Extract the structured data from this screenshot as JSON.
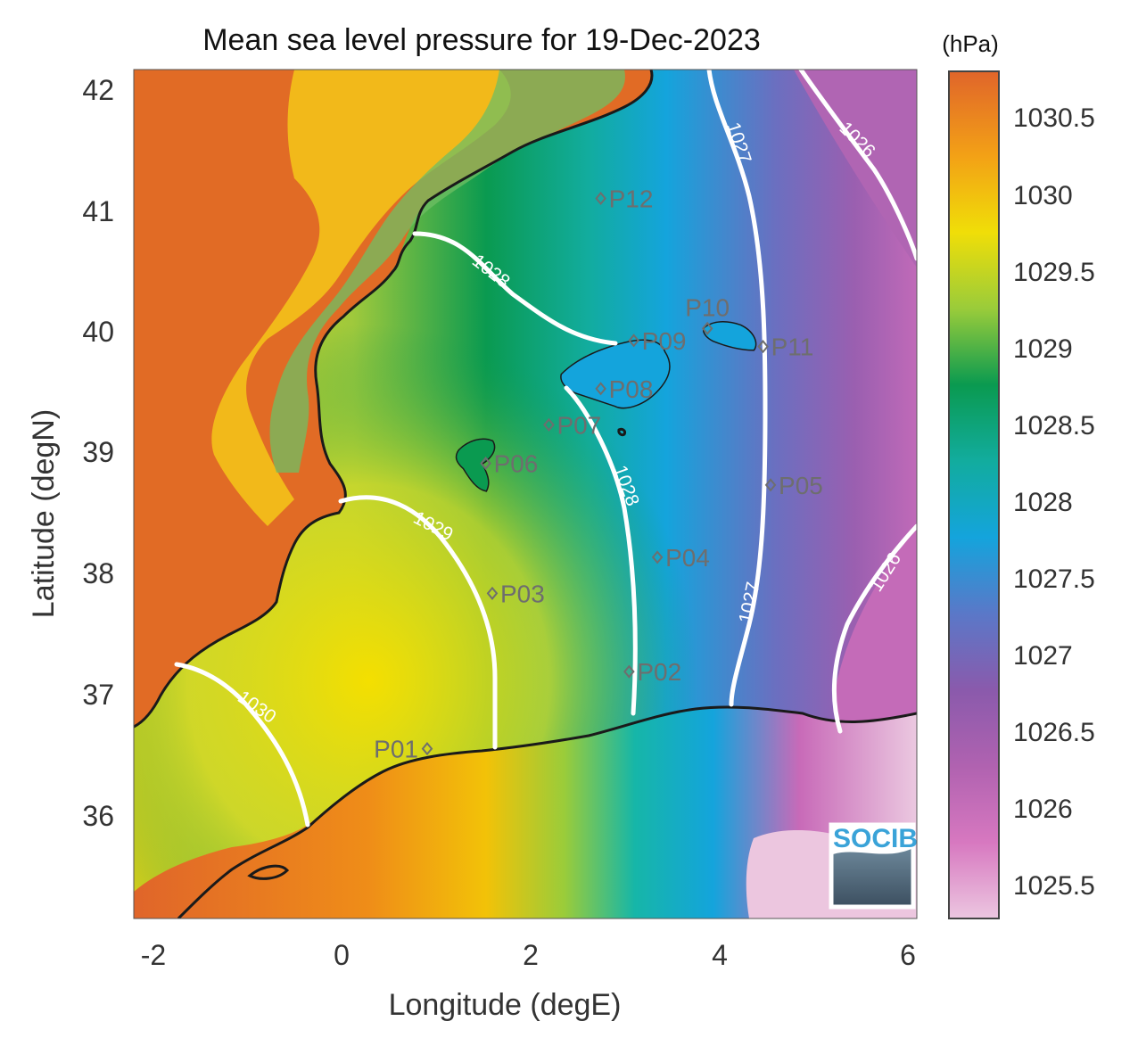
{
  "title": "Mean sea level pressure for 19-Dec-2023",
  "xlabel": "Longitude (degE)",
  "ylabel": "Latitude (degN)",
  "colorbar_unit": "(hPa)",
  "logo_text": "SOCIB",
  "x_ticks": [
    "-2",
    "0",
    "2",
    "4",
    "6"
  ],
  "y_ticks": [
    "42",
    "41",
    "40",
    "39",
    "38",
    "37",
    "36"
  ],
  "colorbar_ticks": [
    "1030.5",
    "1030",
    "1029.5",
    "1029",
    "1028.5",
    "1028",
    "1027.5",
    "1027",
    "1026.5",
    "1026",
    "1025.5"
  ],
  "map_extent": {
    "lon": [
      -2.25,
      6.05
    ],
    "lat": [
      35.1,
      42.15
    ]
  },
  "colorbar_range": [
    1025.3,
    1030.8
  ],
  "colors": {
    "high": "#e06a1e",
    "mid": "#0a9a50",
    "low": "#8a5ab0",
    "lowest": "#e6b8d6",
    "coast": "#1a1a1a",
    "isobar": "#ffffff"
  },
  "points": [
    {
      "name": "P01",
      "lon": 0.86,
      "lat": 36.51
    },
    {
      "name": "P02",
      "lon": 3.0,
      "lat": 37.15
    },
    {
      "name": "P03",
      "lon": 1.55,
      "lat": 37.8
    },
    {
      "name": "P04",
      "lon": 3.3,
      "lat": 38.1
    },
    {
      "name": "P05",
      "lon": 4.5,
      "lat": 38.7
    },
    {
      "name": "P06",
      "lon": 1.48,
      "lat": 38.88
    },
    {
      "name": "P07",
      "lon": 2.15,
      "lat": 39.2
    },
    {
      "name": "P08",
      "lon": 2.7,
      "lat": 39.5
    },
    {
      "name": "P09",
      "lon": 3.05,
      "lat": 39.9
    },
    {
      "name": "P10",
      "lon": 3.83,
      "lat": 40.0
    },
    {
      "name": "P11",
      "lon": 4.42,
      "lat": 39.85
    },
    {
      "name": "P12",
      "lon": 2.7,
      "lat": 41.08
    }
  ],
  "isobar_labels": [
    "1030",
    "1029",
    "1028",
    "1028",
    "1027",
    "1027",
    "1026",
    "1026"
  ],
  "chart_data": {
    "type": "heatmap",
    "title": "Mean sea level pressure for 19-Dec-2023",
    "xlabel": "Longitude (degE)",
    "ylabel": "Latitude (degN)",
    "xlim": [
      -2.25,
      6.05
    ],
    "ylim": [
      35.1,
      42.15
    ],
    "colorbar": {
      "label": "(hPa)",
      "range": [
        1025.3,
        1030.8
      ]
    },
    "contours": [
      1030,
      1029,
      1028,
      1027,
      1026
    ]
  }
}
